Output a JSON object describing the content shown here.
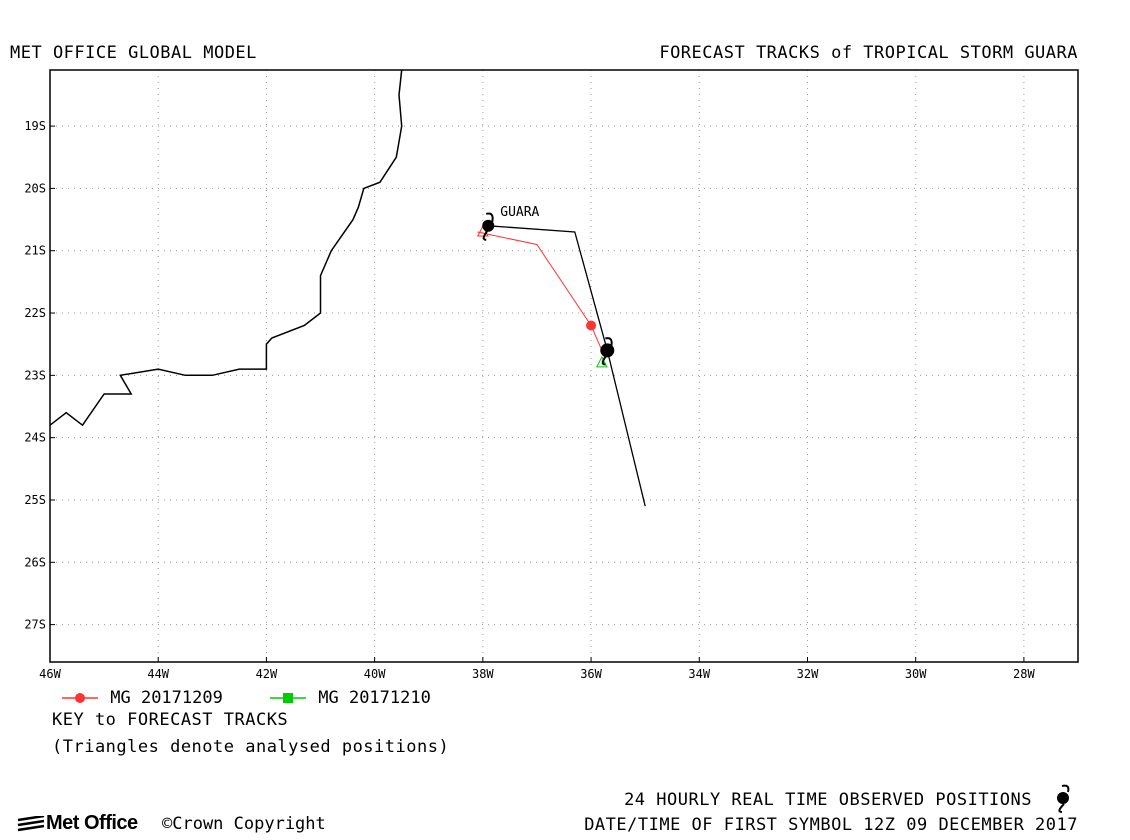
{
  "header": {
    "left_title": "MET OFFICE GLOBAL MODEL",
    "right_title": "FORECAST TRACKS of TROPICAL STORM GUARA"
  },
  "footer": {
    "key_title": "KEY to FORECAST TRACKS",
    "key_note": "(Triangles denote analysed positions)",
    "observed": "24 HOURLY REAL TIME OBSERVED POSITIONS",
    "datetime": "DATE/TIME OF FIRST SYMBOL 12Z 09 DECEMBER 2017",
    "logo": "Met Office",
    "copyright": "©Crown Copyright"
  },
  "colors": {
    "track1": "#ff3333",
    "track2": "#00cc00",
    "observed": "#000000",
    "coast": "#000000",
    "grid": "#999999"
  },
  "chart_data": {
    "type": "map",
    "xlim": [
      -46,
      -27
    ],
    "ylim": [
      -27.6,
      -18.1
    ],
    "x_ticks": [
      -46,
      -44,
      -42,
      -40,
      -38,
      -36,
      -34,
      -32,
      -30,
      -28
    ],
    "x_tick_labels": [
      "46W",
      "44W",
      "42W",
      "40W",
      "38W",
      "36W",
      "34W",
      "32W",
      "30W",
      "28W"
    ],
    "y_ticks": [
      -19,
      -20,
      -21,
      -22,
      -23,
      -24,
      -25,
      -26,
      -27
    ],
    "y_tick_labels": [
      "19S",
      "20S",
      "21S",
      "22S",
      "23S",
      "24S",
      "25S",
      "26S",
      "27S"
    ],
    "storm_label": "GUARA",
    "series": [
      {
        "name": "MG 20171209",
        "color": "#ff3333",
        "marker": "circle",
        "points": [
          [
            -38.1,
            -20.7
          ],
          [
            -37.0,
            -20.9
          ],
          [
            -36.0,
            -22.2
          ],
          [
            -35.8,
            -22.6
          ]
        ]
      },
      {
        "name": "MG 20171210",
        "color": "#00cc00",
        "marker": "square",
        "points": [
          [
            -35.8,
            -22.8
          ]
        ]
      }
    ],
    "observed_track": [
      [
        -37.9,
        -20.6
      ],
      [
        -36.3,
        -20.7
      ],
      [
        -35.7,
        -22.6
      ],
      [
        -35.0,
        -25.1
      ]
    ],
    "observed_symbols": [
      [
        -37.9,
        -20.6
      ],
      [
        -35.7,
        -22.6
      ]
    ],
    "analysed_triangles": [
      {
        "color": "#ff3333",
        "pos": [
          -38.0,
          -20.7
        ]
      },
      {
        "color": "#00cc00",
        "pos": [
          -35.8,
          -22.8
        ]
      }
    ],
    "coastline": [
      [
        -39.5,
        -18.1
      ],
      [
        -39.55,
        -18.5
      ],
      [
        -39.5,
        -19.0
      ],
      [
        -39.6,
        -19.5
      ],
      [
        -39.9,
        -19.9
      ],
      [
        -40.2,
        -20.0
      ],
      [
        -40.3,
        -20.3
      ],
      [
        -40.4,
        -20.5
      ],
      [
        -40.8,
        -21.0
      ],
      [
        -41.0,
        -21.4
      ],
      [
        -41.0,
        -22.0
      ],
      [
        -41.3,
        -22.2
      ],
      [
        -41.9,
        -22.4
      ],
      [
        -42.0,
        -22.5
      ],
      [
        -42.0,
        -22.9
      ],
      [
        -42.5,
        -22.9
      ],
      [
        -43.0,
        -23.0
      ],
      [
        -43.5,
        -23.0
      ],
      [
        -44.0,
        -22.9
      ],
      [
        -44.7,
        -23.0
      ],
      [
        -44.5,
        -23.3
      ],
      [
        -45.0,
        -23.3
      ],
      [
        -45.4,
        -23.8
      ],
      [
        -45.7,
        -23.6
      ],
      [
        -46.0,
        -23.8
      ]
    ]
  }
}
